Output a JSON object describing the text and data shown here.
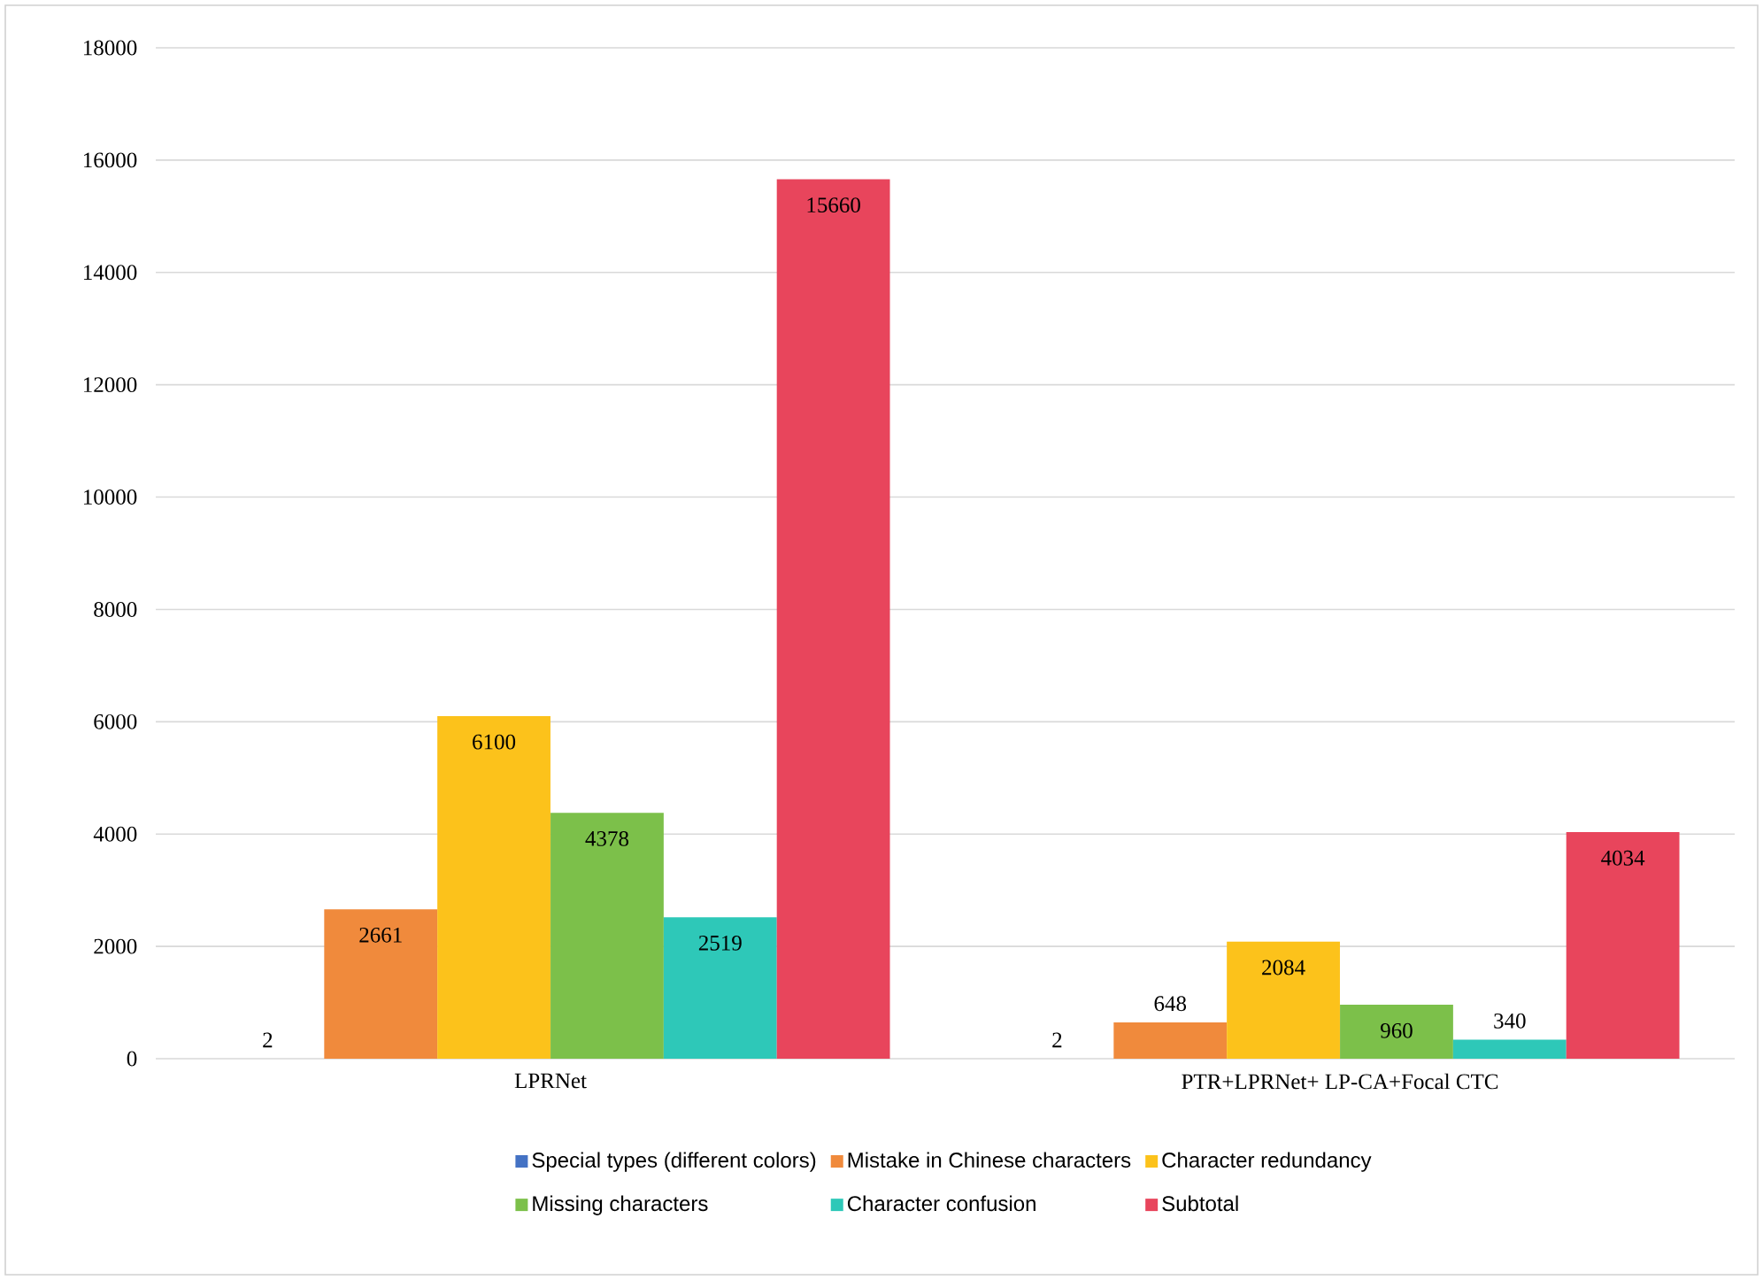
{
  "chart_data": {
    "type": "bar",
    "categories": [
      "LPRNet",
      "PTR+LPRNet+ LP-CA+Focal CTC"
    ],
    "series": [
      {
        "name": "Special types (different colors)",
        "color": "#4472c4",
        "values": [
          2,
          2
        ]
      },
      {
        "name": "Mistake in Chinese characters",
        "color": "#f08a3c",
        "values": [
          2661,
          648
        ]
      },
      {
        "name": "Character redundancy",
        "color": "#fcc21b",
        "values": [
          6100,
          2084
        ]
      },
      {
        "name": "Missing characters",
        "color": "#7cc04a",
        "values": [
          4378,
          960
        ]
      },
      {
        "name": "Character confusion",
        "color": "#2ec8b8",
        "values": [
          2519,
          340
        ]
      },
      {
        "name": "Subtotal",
        "color": "#e8455c",
        "values": [
          15660,
          4034
        ]
      }
    ],
    "ylim": [
      0,
      18000
    ],
    "yticks": [
      0,
      2000,
      4000,
      6000,
      8000,
      10000,
      12000,
      14000,
      16000,
      18000
    ],
    "grid": "y",
    "legend": "bottom",
    "data_labels": true
  }
}
